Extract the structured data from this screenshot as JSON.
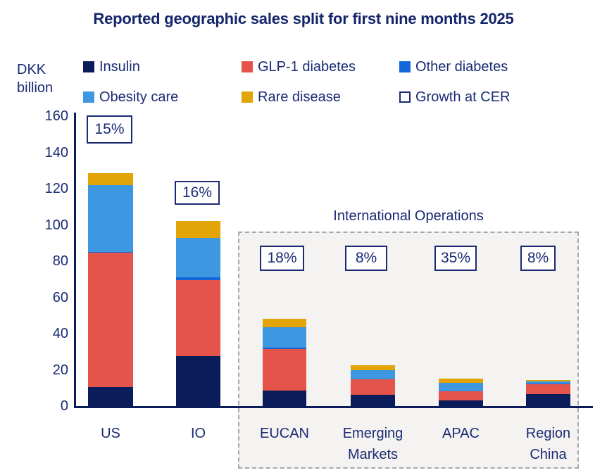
{
  "title": "Reported geographic sales split for first nine months 2025",
  "y_axis": {
    "unit_label": "DKK\nbillion",
    "ticks": [
      160,
      140,
      120,
      100,
      80,
      60,
      40,
      20,
      0
    ]
  },
  "legend": [
    {
      "label": "Insulin",
      "swatch": "#0a1d5a"
    },
    {
      "label": "GLP-1 diabetes",
      "swatch": "#e4544a"
    },
    {
      "label": "Other diabetes",
      "swatch": "#1268d9"
    },
    {
      "label": "Obesity care",
      "swatch": "#3e98e1"
    },
    {
      "label": "Rare disease",
      "swatch": "#e3a408"
    },
    {
      "label": "Growth at CER",
      "swatch": "outline"
    }
  ],
  "chart_data": {
    "type": "bar",
    "stacked": true,
    "title": "Reported geographic sales split for first nine months 2025",
    "ylabel": "DKK billion",
    "ylim": [
      0,
      160
    ],
    "yticks": [
      0,
      20,
      40,
      60,
      80,
      100,
      120,
      140,
      160
    ],
    "grid": false,
    "legend_position": "top",
    "categories": [
      "US",
      "IO",
      "EUCAN",
      "Emerging Markets",
      "APAC",
      "Region China"
    ],
    "categories_display": [
      "US",
      "IO",
      "EUCAN",
      "Emerging\nMarkets",
      "APAC",
      "Region\nChina"
    ],
    "series": [
      {
        "name": "Insulin",
        "color": "#0a1d5a",
        "values": [
          10.5,
          27.5,
          8.5,
          6.3,
          3.0,
          6.6
        ]
      },
      {
        "name": "GLP-1 diabetes",
        "color": "#e4544a",
        "values": [
          74.0,
          42.0,
          23.0,
          8.5,
          5.2,
          5.5
        ]
      },
      {
        "name": "Other diabetes",
        "color": "#1268d9",
        "values": [
          0.5,
          1.5,
          0.7,
          0.0,
          0.0,
          0.4
        ]
      },
      {
        "name": "Obesity care",
        "color": "#3e98e1",
        "values": [
          37.0,
          22.0,
          11.3,
          5.1,
          4.7,
          1.0
        ]
      },
      {
        "name": "Rare disease",
        "color": "#e3a408",
        "values": [
          6.5,
          9.0,
          4.5,
          2.5,
          2.1,
          0.9
        ]
      }
    ],
    "totals": [
      128.5,
      102.0,
      48.0,
      22.4,
      15.0,
      14.4
    ],
    "growth_at_cer": [
      "15%",
      "16%",
      "18%",
      "8%",
      "35%",
      "8%"
    ],
    "annotation_box": {
      "label": "International Operations",
      "categories": [
        "EUCAN",
        "Emerging Markets",
        "APAC",
        "Region China"
      ]
    }
  },
  "colors": {
    "text_navy": "#1a2b74",
    "title_navy": "#14256b",
    "axis_navy": "#0a1d5a",
    "box_fill": "#f5f3f1",
    "box_dash": "#a4a8ae"
  }
}
